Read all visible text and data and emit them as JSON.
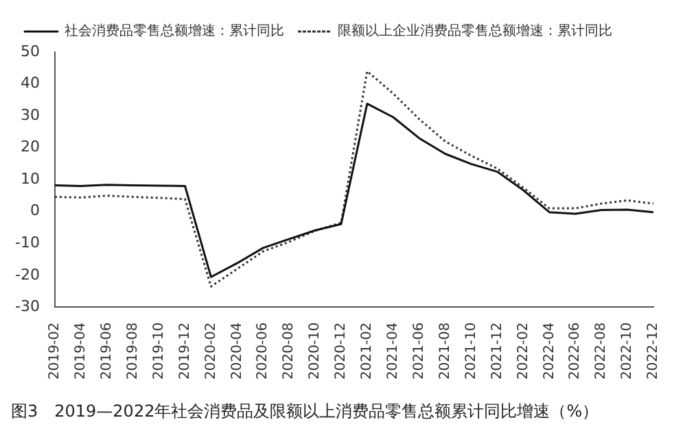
{
  "chart_data": {
    "type": "line",
    "categories": [
      "2019-02",
      "2019-04",
      "2019-06",
      "2019-08",
      "2019-10",
      "2019-12",
      "2020-02",
      "2020-04",
      "2020-06",
      "2020-08",
      "2020-10",
      "2020-12",
      "2021-02",
      "2021-04",
      "2021-06",
      "2021-08",
      "2021-10",
      "2021-12",
      "2022-02",
      "2022-04",
      "2022-06",
      "2022-08",
      "2022-10",
      "2022-12"
    ],
    "series": [
      {
        "name": "社会消费品零售总额增速：累计同比",
        "color": "#111111",
        "line_style": "solid",
        "values": [
          8.2,
          8.0,
          8.4,
          8.2,
          8.1,
          8.0,
          -20.5,
          -16.2,
          -11.4,
          -8.6,
          -5.9,
          -3.9,
          33.8,
          29.6,
          23.0,
          18.1,
          14.9,
          12.5,
          6.7,
          -0.2,
          -0.7,
          0.5,
          0.6,
          -0.2
        ]
      },
      {
        "name": "限额以上企业消费品零售总额增速：累计同比",
        "color": "#333333",
        "line_style": "dotted",
        "values": [
          4.6,
          4.4,
          5.0,
          4.6,
          4.3,
          3.9,
          -23.5,
          -18.0,
          -12.5,
          -9.5,
          -6.0,
          -3.5,
          44.0,
          37.0,
          29.0,
          22.0,
          17.5,
          13.5,
          7.5,
          1.0,
          1.0,
          2.5,
          3.5,
          2.5
        ]
      }
    ],
    "ylim": [
      -30,
      50
    ],
    "yticks": [
      -30,
      -20,
      -10,
      0,
      10,
      20,
      30,
      40,
      50
    ],
    "grid": false,
    "legend": "top",
    "marker": "none",
    "annotations": [
      "图3　2019—2022年社会消费品及限额以上消费品零售总额累计同比增速（%）"
    ]
  }
}
